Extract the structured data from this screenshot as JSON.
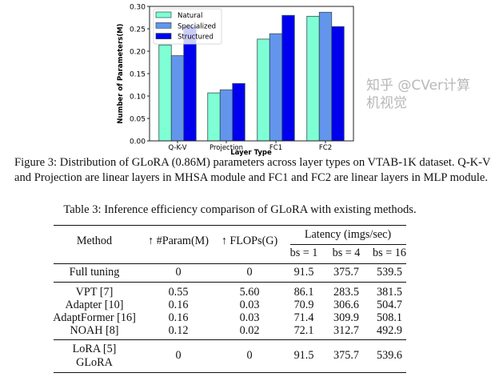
{
  "chart_data": {
    "type": "bar",
    "categories": [
      "Q-K-V",
      "Projection",
      "FC1",
      "FC2"
    ],
    "series": [
      {
        "name": "Natural",
        "color": "#7fffd4",
        "values": [
          0.214,
          0.107,
          0.227,
          0.278
        ]
      },
      {
        "name": "Specialized",
        "color": "#6495ed",
        "values": [
          0.19,
          0.114,
          0.239,
          0.287
        ]
      },
      {
        "name": "Structured",
        "color": "#0000ee",
        "values": [
          0.255,
          0.128,
          0.28,
          0.255
        ]
      }
    ],
    "xlabel": "Layer Type",
    "ylabel": "Number of Parameters(M)",
    "ylim": [
      0,
      0.3
    ],
    "yticks": [
      "0.00",
      "0.05",
      "0.10",
      "0.15",
      "0.20",
      "0.25",
      "0.30"
    ],
    "grid": false,
    "legend": "top-left"
  },
  "figure_caption": {
    "line1": "Figure 3: Distribution of GLoRA (0.86M) parameters across layer types on VTAB-1K dataset. Q-K-V",
    "line2": "and Projection are linear layers in MHSA module and FC1 and FC2 are linear layers in MLP module."
  },
  "table": {
    "title": "Table 3: Inference efficiency comparison of GLoRA with existing methods.",
    "headers": {
      "method": "Method",
      "param": "↑ #Param(M)",
      "flops": "↑ FLOPs(G)",
      "latency": "Latency (imgs/sec)",
      "bs1": "bs = 1",
      "bs4": "bs = 4",
      "bs16": "bs = 16"
    },
    "rows": [
      [
        "Full tuning",
        "0",
        "0",
        "91.5",
        "375.7",
        "539.5"
      ],
      [
        "VPT [7]",
        "0.55",
        "5.60",
        "86.1",
        "283.5",
        "381.5"
      ],
      [
        "Adapter [10]",
        "0.16",
        "0.03",
        "70.9",
        "306.6",
        "504.7"
      ],
      [
        "AdaptFormer [16]",
        "0.16",
        "0.03",
        "71.4",
        "309.9",
        "508.1"
      ],
      [
        "NOAH [8]",
        "0.12",
        "0.02",
        "72.1",
        "312.7",
        "492.9"
      ]
    ],
    "last_row": {
      "method1": "LoRA [5]",
      "method2": "GLoRA",
      "param": "0",
      "flops": "0",
      "bs1": "91.5",
      "bs4": "375.7",
      "bs16": "539.6"
    }
  },
  "watermark": "知乎 @CVer计算机视觉"
}
